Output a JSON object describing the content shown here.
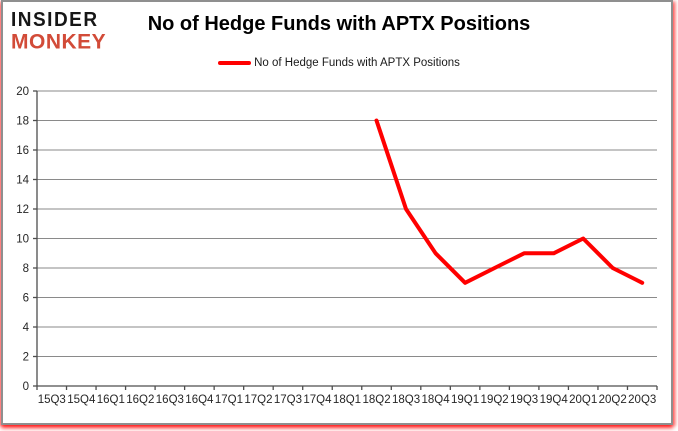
{
  "brand": {
    "line1": "INSIDER",
    "line2": "MONKEY",
    "accent_color": "#d24b38"
  },
  "header": {
    "title": "No of Hedge Funds with APTX Positions"
  },
  "legend": {
    "label": "No of Hedge Funds with APTX Positions",
    "line_color": "#ff0000"
  },
  "chart_data": {
    "type": "line",
    "title": "No of Hedge Funds with APTX Positions",
    "categories": [
      "15Q3",
      "15Q4",
      "16Q1",
      "16Q2",
      "16Q3",
      "16Q4",
      "17Q1",
      "17Q2",
      "17Q3",
      "17Q4",
      "18Q1",
      "18Q2",
      "18Q3",
      "18Q4",
      "19Q1",
      "19Q2",
      "19Q3",
      "19Q4",
      "20Q1",
      "20Q2",
      "20Q3"
    ],
    "series": [
      {
        "name": "No of Hedge Funds with APTX Positions",
        "color": "#ff0000",
        "values": [
          null,
          null,
          null,
          null,
          null,
          null,
          null,
          null,
          null,
          null,
          null,
          18,
          12,
          9,
          7,
          8,
          9,
          9,
          10,
          8,
          7
        ]
      }
    ],
    "ylim": [
      0,
      20
    ],
    "ytick_step": 2,
    "xlabel": "",
    "ylabel": "",
    "grid": true,
    "legend_position": "top",
    "grid_color": "#8a8a8a",
    "axis_color": "#4d4d4d"
  }
}
